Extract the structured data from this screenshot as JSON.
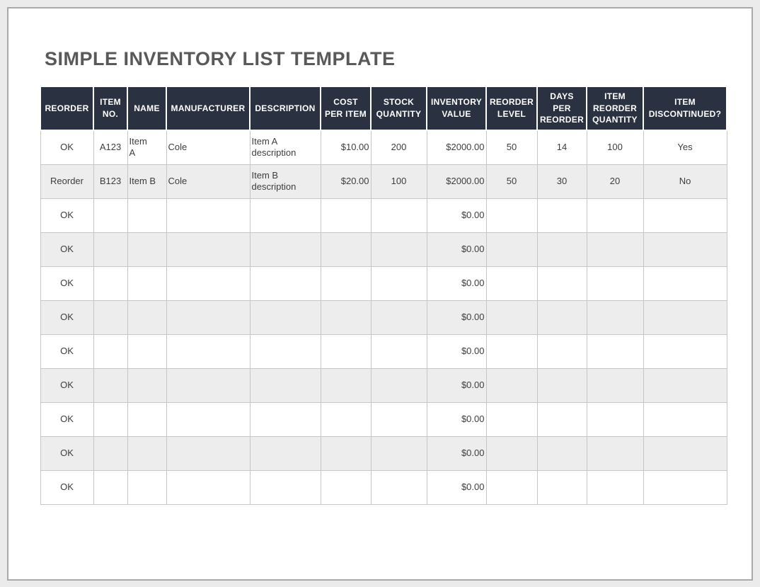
{
  "page": {
    "title": "SIMPLE INVENTORY LIST TEMPLATE"
  },
  "colors": {
    "header_background": "#2a3140",
    "header_text": "#ffffff",
    "row_stripe": "#ededed",
    "grid_line": "#c6c6c6",
    "title_text": "#595959",
    "body_text": "#3d3d3d",
    "page_border": "#a9a9a9",
    "outer_background": "#ebebeb"
  },
  "table": {
    "columns": [
      {
        "key": "reorder",
        "label": "REORDER"
      },
      {
        "key": "item_no",
        "label": "ITEM\nNO."
      },
      {
        "key": "name",
        "label": "NAME"
      },
      {
        "key": "manufacturer",
        "label": "MANUFACTURER"
      },
      {
        "key": "description",
        "label": "DESCRIPTION"
      },
      {
        "key": "cost_per_item",
        "label": "COST\nPER ITEM"
      },
      {
        "key": "stock_quantity",
        "label": "STOCK\nQUANTITY"
      },
      {
        "key": "inventory_value",
        "label": "INVENTORY\nVALUE"
      },
      {
        "key": "reorder_level",
        "label": "REORDER\nLEVEL"
      },
      {
        "key": "days_per_reorder",
        "label": "DAYS\nPER\nREORDER"
      },
      {
        "key": "item_reorder_quantity",
        "label": "ITEM\nREORDER\nQUANTITY"
      },
      {
        "key": "item_discontinued",
        "label": "ITEM\nDISCONTINUED?"
      }
    ],
    "rows": [
      [
        "OK",
        "A123",
        "Item\nA",
        "Cole",
        "Item A\ndescription",
        "$10.00",
        "200",
        "$2000.00",
        "50",
        "14",
        "100",
        "Yes"
      ],
      [
        "Reorder",
        "B123",
        "Item B",
        "Cole",
        "Item B\ndescription",
        "$20.00",
        "100",
        "$2000.00",
        "50",
        "30",
        "20",
        "No"
      ],
      [
        "OK",
        "",
        "",
        "",
        "",
        "",
        "",
        "$0.00",
        "",
        "",
        "",
        ""
      ],
      [
        "OK",
        "",
        "",
        "",
        "",
        "",
        "",
        "$0.00",
        "",
        "",
        "",
        ""
      ],
      [
        "OK",
        "",
        "",
        "",
        "",
        "",
        "",
        "$0.00",
        "",
        "",
        "",
        ""
      ],
      [
        "OK",
        "",
        "",
        "",
        "",
        "",
        "",
        "$0.00",
        "",
        "",
        "",
        ""
      ],
      [
        "OK",
        "",
        "",
        "",
        "",
        "",
        "",
        "$0.00",
        "",
        "",
        "",
        ""
      ],
      [
        "OK",
        "",
        "",
        "",
        "",
        "",
        "",
        "$0.00",
        "",
        "",
        "",
        ""
      ],
      [
        "OK",
        "",
        "",
        "",
        "",
        "",
        "",
        "$0.00",
        "",
        "",
        "",
        ""
      ],
      [
        "OK",
        "",
        "",
        "",
        "",
        "",
        "",
        "$0.00",
        "",
        "",
        "",
        ""
      ],
      [
        "OK",
        "",
        "",
        "",
        "",
        "",
        "",
        "$0.00",
        "",
        "",
        "",
        ""
      ]
    ]
  }
}
